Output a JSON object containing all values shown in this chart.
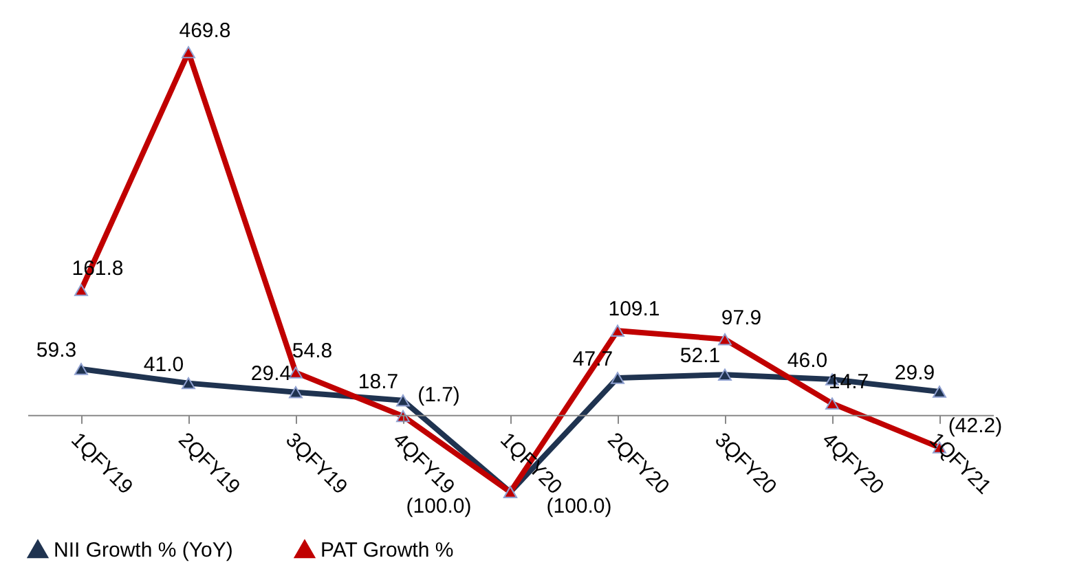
{
  "chart_data": {
    "type": "line",
    "categories": [
      "1QFY19",
      "2QFY19",
      "3QFY19",
      "4QFY19",
      "1QFY20",
      "2QFY20",
      "3QFY20",
      "4QFY20",
      "1QFY21"
    ],
    "series": [
      {
        "name": "NII Growth % (YoY)",
        "color": "#1f3350",
        "values": [
          59.3,
          41.0,
          29.4,
          18.7,
          -100.0,
          47.7,
          52.1,
          46.0,
          29.9
        ],
        "value_labels": [
          "59.3",
          "41.0",
          "29.4",
          "18.7",
          "(100.0)",
          "47.7",
          "52.1",
          "46.0",
          "29.9"
        ]
      },
      {
        "name": "PAT Growth %",
        "color": "#c00000",
        "values": [
          161.8,
          469.8,
          54.8,
          -1.7,
          -100.0,
          109.1,
          97.9,
          14.7,
          -42.2
        ],
        "value_labels": [
          "161.8",
          "469.8",
          "54.8",
          "(1.7)",
          "(100.0)",
          "109.1",
          "97.9",
          "14.7",
          "(42.2)"
        ]
      }
    ],
    "legend": "bottom",
    "marker": "triangle",
    "grid": false
  }
}
